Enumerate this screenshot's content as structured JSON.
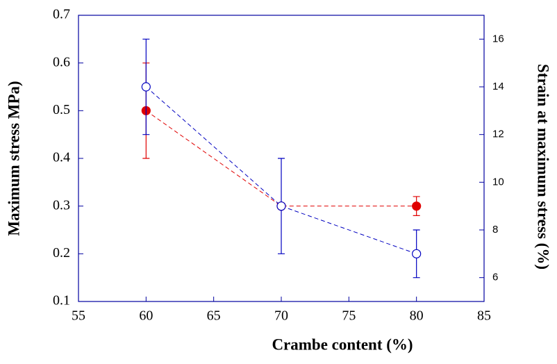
{
  "chart_data": {
    "type": "scatter",
    "x_label": "Crambe content (%)",
    "y_label": "Maximum stress MPa)",
    "y2_label": "Strain at maximum stress (%)",
    "x": [
      60,
      70,
      80
    ],
    "xlim": [
      55,
      85
    ],
    "xticks": [
      55,
      60,
      65,
      70,
      75,
      80,
      85
    ],
    "ylim": [
      0.1,
      0.7
    ],
    "yticks": [
      0.1,
      0.2,
      0.3,
      0.4,
      0.5,
      0.6,
      0.7
    ],
    "y2lim": [
      5,
      17
    ],
    "y2ticks": [
      6,
      8,
      10,
      12,
      14,
      16
    ],
    "series": [
      {
        "name": "Maximum stress",
        "color": "#e00000",
        "filled": true,
        "values": [
          0.5,
          0.3,
          0.3
        ],
        "errors": [
          0.1,
          null,
          0.02
        ]
      },
      {
        "name": "Strain at maximum stress",
        "color": "#0000c0",
        "filled": false,
        "axis": "y2",
        "values": [
          14,
          9,
          7
        ],
        "errors": [
          2,
          2,
          1
        ]
      }
    ]
  }
}
